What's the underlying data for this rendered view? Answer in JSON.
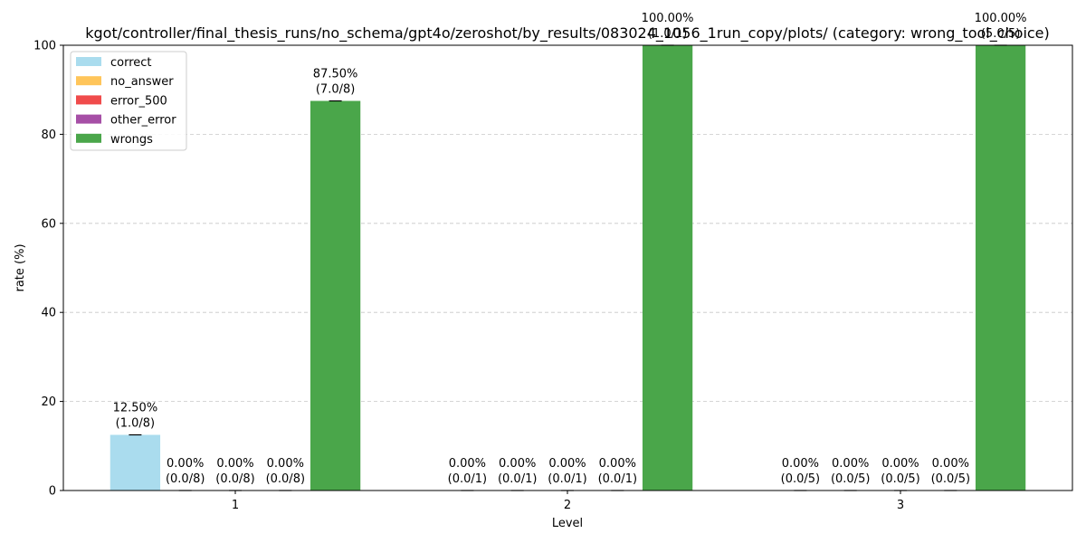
{
  "chart_data": {
    "type": "bar",
    "title": "kgot/controller/final_thesis_runs/no_schema/gpt4o/zeroshot/by_results/083024_1056_1run_copy/plots/ (category: wrong_tool_choice)",
    "xlabel": "Level",
    "ylabel": "rate (%)",
    "ylim": [
      0,
      100
    ],
    "yticks": [
      0,
      20,
      40,
      60,
      80,
      100
    ],
    "grid": "y-dashed",
    "legend_position": "top-left",
    "categories": [
      "1",
      "2",
      "3"
    ],
    "series": [
      {
        "name": "correct",
        "color": "#aadcee",
        "values": [
          12.5,
          0,
          0
        ],
        "labels": [
          [
            "12.50%",
            "(1.0/8)"
          ],
          [
            "0.00%",
            "(0.0/1)"
          ],
          [
            "0.00%",
            "(0.0/5)"
          ]
        ]
      },
      {
        "name": "no_answer",
        "color": "#ffc55a",
        "values": [
          0,
          0,
          0
        ],
        "labels": [
          [
            "0.00%",
            "(0.0/8)"
          ],
          [
            "0.00%",
            "(0.0/1)"
          ],
          [
            "0.00%",
            "(0.0/5)"
          ]
        ]
      },
      {
        "name": "error_500",
        "color": "#f04b4b",
        "values": [
          0,
          0,
          0
        ],
        "labels": [
          [
            "0.00%",
            "(0.0/8)"
          ],
          [
            "0.00%",
            "(0.0/1)"
          ],
          [
            "0.00%",
            "(0.0/5)"
          ]
        ]
      },
      {
        "name": "other_error",
        "color": "#a64fa6",
        "values": [
          0,
          0,
          0
        ],
        "labels": [
          [
            "0.00%",
            "(0.0/8)"
          ],
          [
            "0.00%",
            "(0.0/1)"
          ],
          [
            "0.00%",
            "(0.0/5)"
          ]
        ]
      },
      {
        "name": "wrongs",
        "color": "#4aa64a",
        "values": [
          87.5,
          100,
          100
        ],
        "labels": [
          [
            "87.50%",
            "(7.0/8)"
          ],
          [
            "100.00%",
            "(1.0/1)"
          ],
          [
            "100.00%",
            "(5.0/5)"
          ]
        ]
      }
    ]
  }
}
